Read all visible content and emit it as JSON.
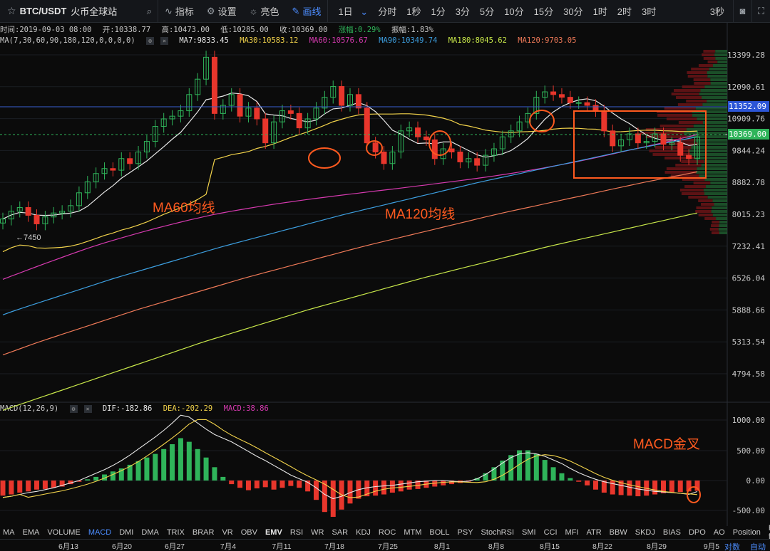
{
  "symbol": {
    "pair": "BTC/USDT",
    "venue": "火币全球站"
  },
  "tools": [
    {
      "label": "指标",
      "icon": "indicator-icon"
    },
    {
      "label": "设置",
      "icon": "gear-icon"
    },
    {
      "label": "亮色",
      "icon": "sun-icon"
    },
    {
      "label": "画线",
      "icon": "pen-icon"
    }
  ],
  "intervals": [
    "1日",
    "分时",
    "1秒",
    "1分",
    "3分",
    "5分",
    "10分",
    "15分",
    "30分",
    "1时",
    "2时",
    "3时"
  ],
  "selected_interval": "1日",
  "refresh": "3秒",
  "ohlc": {
    "time": "时间:2019-09-03 08:00",
    "open": "开:10338.77",
    "high": "高:10473.00",
    "low": "低:10285.00",
    "close": "收:10369.00",
    "change": "涨幅:0.29%",
    "amplitude": "振幅:1.83%"
  },
  "ma": {
    "label": "MA(7,30,60,90,180,120,0,0,0,0)",
    "items": [
      {
        "text": "MA7:9833.45",
        "color": "#e8e8e8"
      },
      {
        "text": "MA30:10583.12",
        "color": "#f2d34b"
      },
      {
        "text": "MA60:10576.67",
        "color": "#d63ab0"
      },
      {
        "text": "MA90:10349.74",
        "color": "#3d9fe0"
      },
      {
        "text": "MA180:8045.62",
        "color": "#c9e84a"
      },
      {
        "text": "MA120:9703.05",
        "color": "#f07a58"
      }
    ]
  },
  "macd": {
    "label": "MACD(12,26,9)",
    "dif": "DIF:-182.86",
    "dea": "DEA:-202.29",
    "macd": "MACD:38.86"
  },
  "price_axis": [
    "13399.28",
    "12090.61",
    "10909.76",
    "9844.24",
    "8882.78",
    "8015.23",
    "7232.41",
    "6526.04",
    "5888.66",
    "5313.54",
    "4794.58"
  ],
  "price_tags": {
    "line": "11352.09",
    "current": "10369.00"
  },
  "low_marker": "7450",
  "macd_axis": [
    "1000.00",
    "500.00",
    "0.00",
    "-500.00"
  ],
  "annotations": {
    "ma60": "MA60均线",
    "ma120": "MA120均线",
    "macd_cross": "MACD金叉"
  },
  "indicators": [
    "MA",
    "EMA",
    "VOLUME",
    "MACD",
    "DMI",
    "DMA",
    "TRIX",
    "BRAR",
    "VR",
    "OBV",
    "EMV",
    "RSI",
    "WR",
    "SAR",
    "KDJ",
    "ROC",
    "MTM",
    "BOLL",
    "PSY",
    "StochRSI",
    "SMI",
    "CCI",
    "MFI",
    "ATR",
    "BBW",
    "SKDJ",
    "BIAS",
    "DPO",
    "AO",
    "Position",
    "Fund-flow"
  ],
  "selected_indicator": "MACD",
  "bold_indicator": "EMV",
  "dates": [
    "6月13",
    "6月20",
    "6月27",
    "7月4",
    "7月11",
    "7月18",
    "7月25",
    "8月1",
    "8月8",
    "8月15",
    "8月22",
    "8月29",
    "9月5"
  ],
  "scale_modes": [
    "对数",
    "自动"
  ],
  "colors": {
    "up": "#2fb45a",
    "down": "#e8362c",
    "accent": "#4c8dff",
    "annotation": "#ff5a1f"
  }
}
